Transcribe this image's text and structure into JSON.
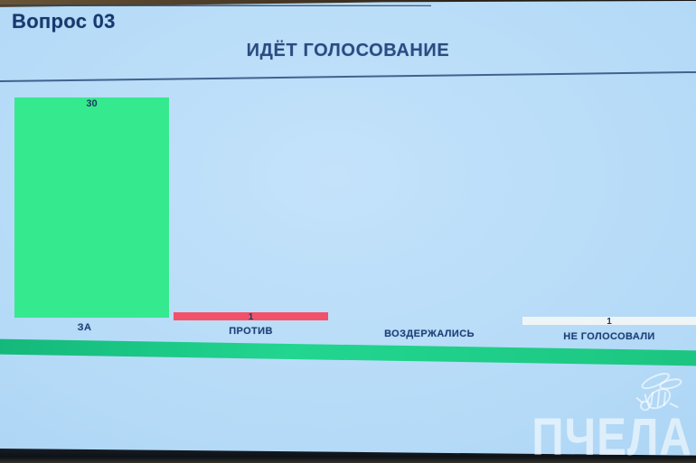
{
  "header": {
    "question_label": "Вопрос 03",
    "voting_title": "ИДЁТ ГОЛОСОВАНИЕ"
  },
  "chart_data": {
    "type": "bar",
    "title": "ИДЁТ ГОЛОСОВАНИЕ",
    "categories": [
      "ЗА",
      "ПРОТИВ",
      "ВОЗДЕРЖАЛИСЬ",
      "НЕ ГОЛОСОВАЛИ"
    ],
    "values": [
      30,
      1,
      0,
      1
    ],
    "bar_colors": [
      "#35e98e",
      "#f2516a",
      null,
      "#eff5f6"
    ],
    "ylim": [
      0,
      30
    ],
    "xlabel": "",
    "ylabel": "",
    "grid": false,
    "legend": false,
    "notes": "zero-value category ВОЗДЕРЖАЛИСЬ has no visible bar; value labels shown at top of each bar"
  },
  "colors": {
    "background": "#b4daf7",
    "text_navy": "#1d4078",
    "bar_green": "#35e98e",
    "bar_red": "#f2516a",
    "bar_white": "#eff5f6",
    "stripe_left": "#14b87a",
    "stripe_bright": "#22d690",
    "stripe_right": "#1cc580"
  },
  "watermark": {
    "text": "ПЧЕЛА",
    "icon": "bee-icon"
  }
}
